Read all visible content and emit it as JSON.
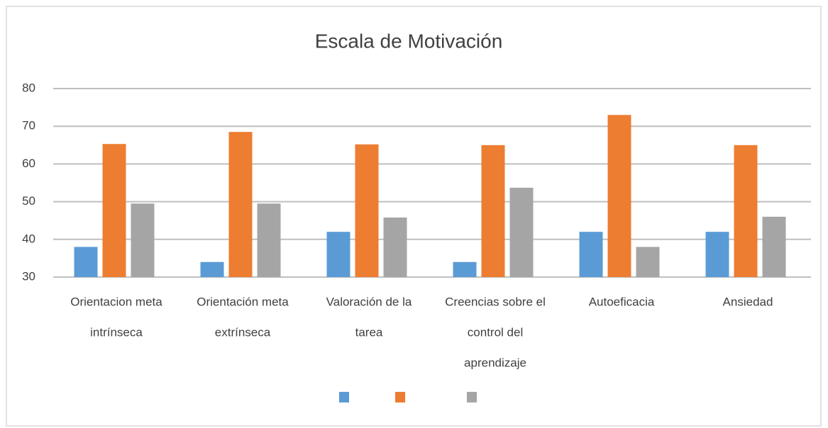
{
  "chart_data": {
    "type": "bar",
    "title": "Escala de Motivación",
    "categories": [
      [
        "Orientacion meta",
        "intrínseca"
      ],
      [
        "Orientación meta",
        "extrínseca"
      ],
      [
        "Valoración de la",
        "tarea"
      ],
      [
        "Creencias sobre el",
        "control del",
        "aprendizaje"
      ],
      [
        "Autoeficacia"
      ],
      [
        "Ansiedad"
      ]
    ],
    "series": [
      {
        "color": "#5b9bd5",
        "values": [
          38,
          34,
          42,
          34,
          42,
          42
        ]
      },
      {
        "color": "#ed7d31",
        "values": [
          65.3,
          68.5,
          65.2,
          65,
          73,
          65
        ]
      },
      {
        "color": "#a5a5a5",
        "values": [
          49.5,
          49.5,
          45.8,
          53.7,
          38,
          46
        ]
      }
    ],
    "ylim": [
      30,
      80
    ],
    "yticks": [
      30,
      40,
      50,
      60,
      70,
      80
    ],
    "grid": true,
    "legend": "bottom"
  }
}
